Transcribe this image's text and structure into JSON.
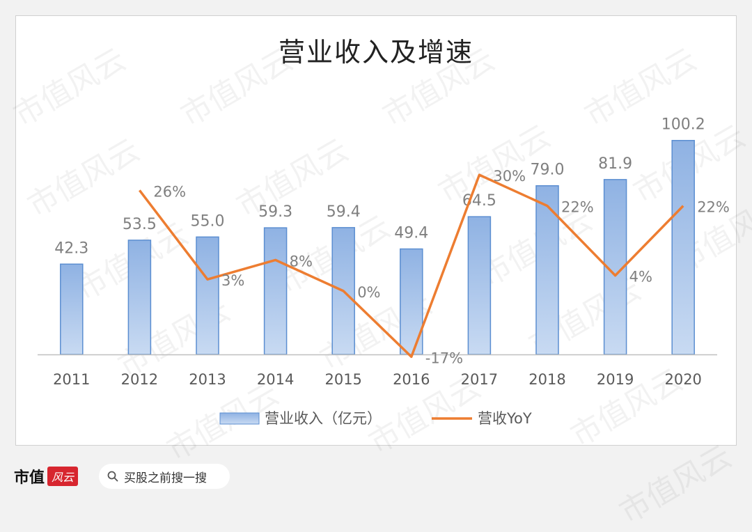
{
  "chart_data": {
    "type": "bar",
    "title": "营业收入及增速",
    "categories": [
      "2011",
      "2012",
      "2013",
      "2014",
      "2015",
      "2016",
      "2017",
      "2018",
      "2019",
      "2020"
    ],
    "series": [
      {
        "name": "营业收入（亿元）",
        "type": "bar",
        "values": [
          42.3,
          53.5,
          55.0,
          59.3,
          59.4,
          49.4,
          64.5,
          79.0,
          81.9,
          100.2
        ],
        "labels": [
          "42.3",
          "53.5",
          "55.0",
          "59.3",
          "59.4",
          "49.4",
          "64.5",
          "79.0",
          "81.9",
          "100.2"
        ]
      },
      {
        "name": "营收YoY",
        "type": "line",
        "values": [
          null,
          26,
          3,
          8,
          0,
          -17,
          30,
          22,
          4,
          22
        ],
        "labels": [
          "",
          "26%",
          "3%",
          "8%",
          "0%",
          "-17%",
          "30%",
          "22%",
          "4%",
          "22%"
        ]
      }
    ],
    "bar_ylim": [
      0,
      120
    ],
    "line_ylim": [
      -20,
      50
    ],
    "grid": false,
    "legend_position": "bottom",
    "colors": {
      "bar_fill": "#a9c4e8",
      "bar_edge": "#5b8ed1",
      "line": "#ed7d31",
      "axis": "#bfbfbf",
      "label": "#7f7f7f"
    }
  },
  "watermark": "市值风云",
  "footer": {
    "logo_text": "市值",
    "logo_mark": "风云",
    "search_text": "买股之前搜一搜"
  }
}
